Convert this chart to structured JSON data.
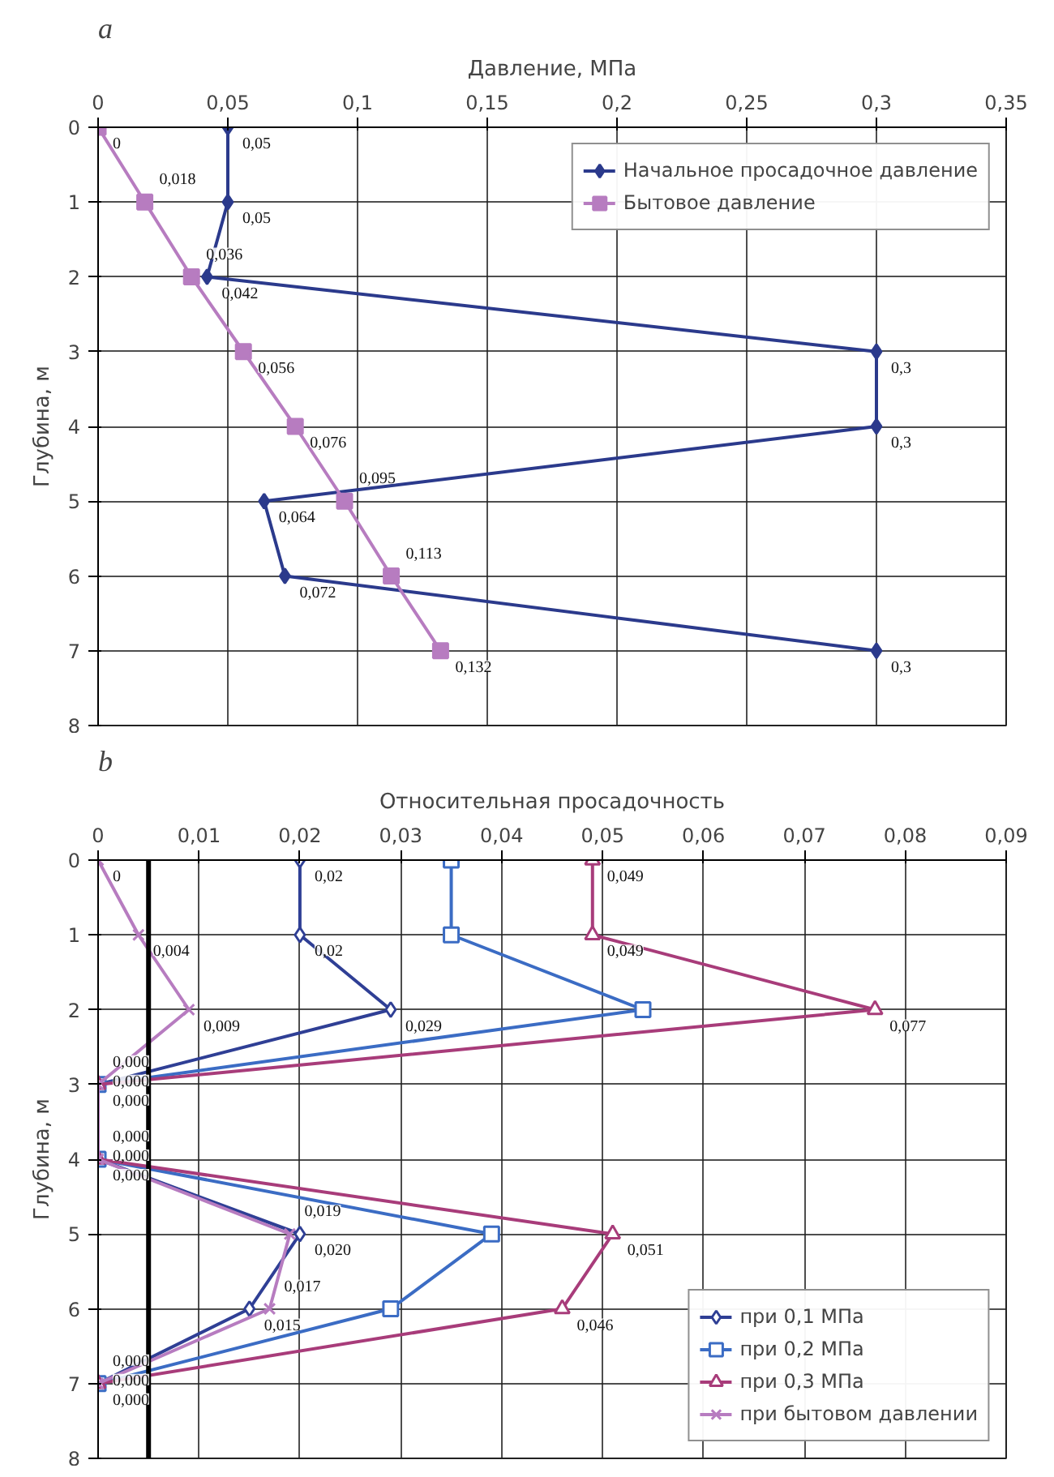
{
  "chart_data": [
    {
      "type": "line",
      "title": "a",
      "xlabel": "Давление, МПа",
      "ylabel": "Глубина, м",
      "x": [
        0,
        1,
        2,
        3,
        4,
        5,
        6,
        7
      ],
      "orientation": "horizontal",
      "xlim": [
        0,
        0.35
      ],
      "xticks": [
        0,
        {
          "value": 0.05,
          "label": "0,05"
        },
        {
          "value": 0.1,
          "label": "0,1"
        },
        {
          "value": 0.15,
          "label": "0,15"
        },
        {
          "value": 0.2,
          "label": "0,2"
        },
        {
          "value": 0.25,
          "label": "0,25"
        },
        {
          "value": 0.3,
          "label": "0,3"
        },
        {
          "value": 0.35,
          "label": "0,35"
        }
      ],
      "ylim": [
        8,
        0
      ],
      "yticks": [
        0,
        1,
        2,
        3,
        4,
        5,
        6,
        7,
        8
      ],
      "grid": true,
      "legend": "top right",
      "series": [
        {
          "name": "Начальное просадочное давление",
          "color": "#2b3a8c",
          "marker": "diamond",
          "values": [
            0.05,
            0.05,
            0.042,
            0.3,
            0.3,
            0.064,
            0.072,
            0.3
          ],
          "value_labels": [
            "0,05",
            "0,05",
            "0,042",
            "0,3",
            "0,3",
            "0,064",
            "0,072",
            "0,3"
          ]
        },
        {
          "name": "Бытовое давление",
          "color": "#b77cc0",
          "marker": "square",
          "values": [
            0,
            0.018,
            0.036,
            0.056,
            0.076,
            0.095,
            0.113,
            0.132
          ],
          "value_labels": [
            "0",
            "0,018",
            "0,036",
            "0,056",
            "0,076",
            "0,095",
            "0,113",
            "0,132"
          ]
        }
      ]
    },
    {
      "type": "line",
      "title": "b",
      "xlabel": "Относительная просадочность",
      "ylabel": "Глубина, м",
      "x": [
        0,
        1,
        2,
        3,
        4,
        5,
        6,
        7
      ],
      "orientation": "horizontal",
      "xlim": [
        0,
        0.09
      ],
      "xticks": [
        0,
        {
          "value": 0.01,
          "label": "0,01"
        },
        {
          "value": 0.02,
          "label": "0,02"
        },
        {
          "value": 0.03,
          "label": "0,03"
        },
        {
          "value": 0.04,
          "label": "0,04"
        },
        {
          "value": 0.05,
          "label": "0,05"
        },
        {
          "value": 0.06,
          "label": "0,06"
        },
        {
          "value": 0.07,
          "label": "0,07"
        },
        {
          "value": 0.08,
          "label": "0,08"
        },
        {
          "value": 0.09,
          "label": "0,09"
        }
      ],
      "ylim": [
        8,
        0
      ],
      "yticks": [
        0,
        1,
        2,
        3,
        4,
        5,
        6,
        7,
        8
      ],
      "grid": true,
      "legend": "bottom right",
      "ref_lines": [
        {
          "axis": "x",
          "value": 0.005,
          "color": "#000000"
        }
      ],
      "series": [
        {
          "name": "при 0,1 МПа",
          "color": "#2f3f95",
          "marker": "diamond",
          "values": [
            0.02,
            0.02,
            0.029,
            0,
            0,
            0.02,
            0.015,
            0
          ],
          "value_labels": [
            "0,02",
            "0,02",
            "0,029",
            "0,000",
            "0,000",
            "0,020",
            "0,015",
            "0,000"
          ]
        },
        {
          "name": "при 0,2 МПа",
          "color": "#3b6cc4",
          "marker": "square",
          "values": [
            0.035,
            0.035,
            0.054,
            0,
            0,
            0.039,
            0.029,
            0
          ]
        },
        {
          "name": "при 0,3 МПа",
          "color": "#a83c7a",
          "marker": "triangle",
          "values": [
            0.049,
            0.049,
            0.077,
            0,
            0,
            0.051,
            0.046,
            0
          ],
          "value_labels": [
            "0,049",
            "0,049",
            "0,077",
            "0,000",
            "0,000",
            "0,051",
            "0,046",
            "0,000"
          ]
        },
        {
          "name": "при бытовом давлении",
          "color": "#b77cc0",
          "marker": "cross",
          "values": [
            0,
            0.004,
            0.009,
            0,
            0,
            0.019,
            0.017,
            0
          ],
          "value_labels": [
            "0",
            "0,004",
            "0,009",
            "0,000",
            "0,000",
            "0,019",
            "0,017",
            "0,000"
          ]
        }
      ]
    }
  ]
}
